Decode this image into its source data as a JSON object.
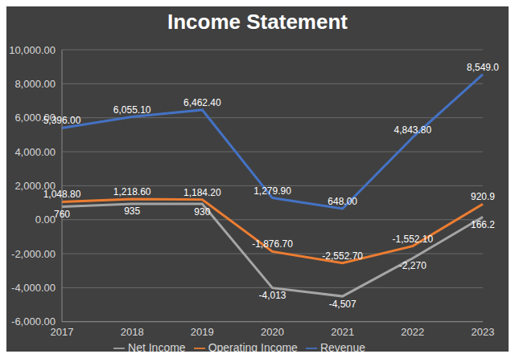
{
  "chart_data": {
    "type": "line",
    "title": "Income Statement",
    "categories": [
      "2017",
      "2018",
      "2019",
      "2020",
      "2021",
      "2022",
      "2023"
    ],
    "series": [
      {
        "name": "Revenue",
        "color": "#4472c4",
        "values": [
          5396,
          6055.1,
          6462.4,
          1279.9,
          648,
          4843.8,
          8549
        ],
        "value_labels": [
          "5,396.00",
          "6,055.10",
          "6,462.40",
          "1,279.90",
          "648.00",
          "4,843.80",
          "8,549.0"
        ]
      },
      {
        "name": "Operating Income",
        "color": "#ed7d31",
        "values": [
          1048.8,
          1218.6,
          1184.2,
          -1876.7,
          -2552.7,
          -1552.1,
          920.9
        ],
        "value_labels": [
          "1,048.80",
          "1,218.60",
          "1,184.20",
          "-1,876.70",
          "-2,552.70",
          "-1,552.10",
          "920.9"
        ]
      },
      {
        "name": "Net Income",
        "color": "#a5a5a5",
        "values": [
          760,
          935,
          930,
          -4013,
          -4507,
          -2270,
          166.2
        ],
        "value_labels": [
          "760",
          "935",
          "930",
          "-4,013",
          "-4,507",
          "-2,270",
          "166.2"
        ]
      }
    ],
    "ylim": [
      -6000,
      10000
    ],
    "yticks": [
      {
        "value": -6000,
        "label": "-6,000.00"
      },
      {
        "value": -4000,
        "label": "-4,000.00"
      },
      {
        "value": -2000,
        "label": "-2,000.00"
      },
      {
        "value": 0,
        "label": "0.00"
      },
      {
        "value": 2000,
        "label": "2,000.00"
      },
      {
        "value": 4000,
        "label": "4,000.00"
      },
      {
        "value": 6000,
        "label": "6,000.00"
      },
      {
        "value": 8000,
        "label": "8,000.00"
      },
      {
        "value": 10000,
        "label": "10,000.00"
      }
    ],
    "grid": true,
    "legend": "bottom",
    "data_labels": true
  }
}
